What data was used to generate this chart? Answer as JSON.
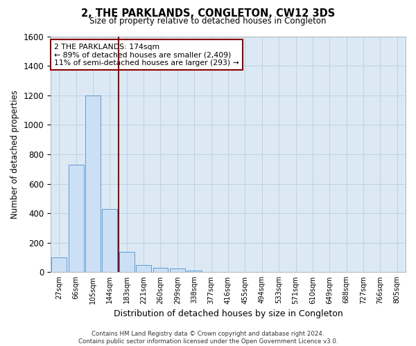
{
  "title": "2, THE PARKLANDS, CONGLETON, CW12 3DS",
  "subtitle": "Size of property relative to detached houses in Congleton",
  "xlabel": "Distribution of detached houses by size in Congleton",
  "ylabel": "Number of detached properties",
  "categories": [
    "27sqm",
    "66sqm",
    "105sqm",
    "144sqm",
    "183sqm",
    "221sqm",
    "260sqm",
    "299sqm",
    "338sqm",
    "377sqm",
    "416sqm",
    "455sqm",
    "494sqm",
    "533sqm",
    "571sqm",
    "610sqm",
    "649sqm",
    "688sqm",
    "727sqm",
    "766sqm",
    "805sqm"
  ],
  "values": [
    100,
    730,
    1200,
    430,
    140,
    50,
    30,
    25,
    10,
    0,
    0,
    0,
    0,
    0,
    0,
    0,
    0,
    0,
    0,
    0,
    0
  ],
  "bar_color": "#cce0f5",
  "bar_edge_color": "#5b9bd5",
  "marker_line_index": 4,
  "marker_line_color": "#8b0000",
  "ylim": [
    0,
    1600
  ],
  "yticks": [
    0,
    200,
    400,
    600,
    800,
    1000,
    1200,
    1400,
    1600
  ],
  "annotation_line1": "2 THE PARKLANDS: 174sqm",
  "annotation_line2": "← 89% of detached houses are smaller (2,409)",
  "annotation_line3": "11% of semi-detached houses are larger (293) →",
  "annotation_box_color": "#8b0000",
  "footer_line1": "Contains HM Land Registry data © Crown copyright and database right 2024.",
  "footer_line2": "Contains public sector information licensed under the Open Government Licence v3.0.",
  "fig_width": 6.0,
  "fig_height": 5.0,
  "background_color": "#ffffff",
  "plot_background_color": "#dce9f5"
}
